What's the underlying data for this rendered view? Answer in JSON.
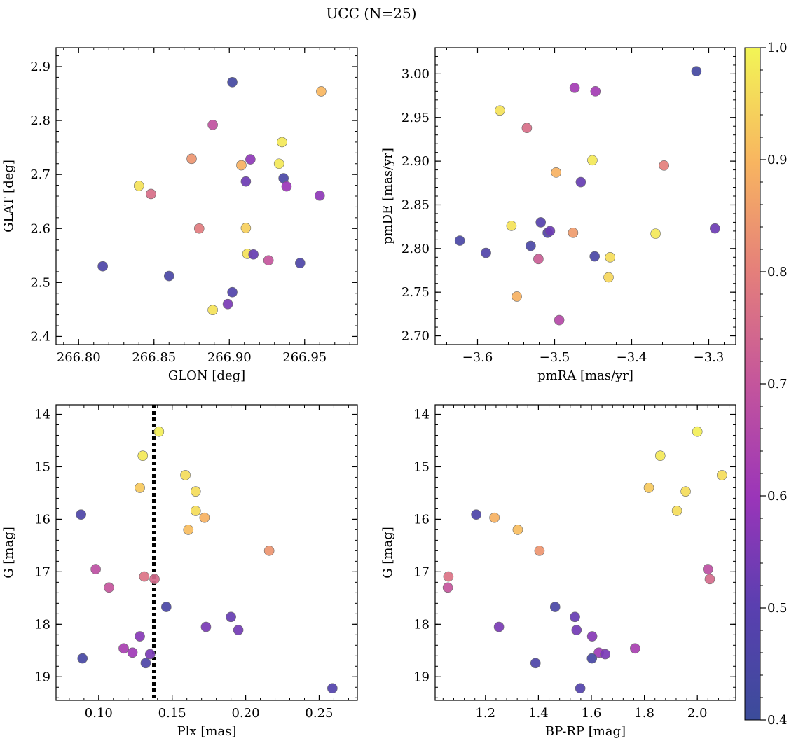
{
  "title": "UCC (N=25)",
  "colorbar": {
    "min": 0.4,
    "max": 1.0,
    "ticks": [
      0.4,
      0.5,
      0.6,
      0.7,
      0.8,
      0.9,
      1.0
    ],
    "tick_labels": [
      "0.4",
      "0.5",
      "0.6",
      "0.7",
      "0.8",
      "0.9",
      "1.0"
    ],
    "colormap": "plasma"
  },
  "chart_data": [
    {
      "type": "scatter",
      "panel": "top-left",
      "xlabel": "GLON [deg]",
      "ylabel": "GLAT [deg]",
      "xlim": [
        266.785,
        266.985
      ],
      "ylim": [
        2.385,
        2.935
      ],
      "xticks": [
        266.8,
        266.85,
        266.9,
        266.95
      ],
      "xtick_labels": [
        "266.80",
        "266.85",
        "266.90",
        "266.95"
      ],
      "yticks": [
        2.4,
        2.5,
        2.6,
        2.7,
        2.8,
        2.9
      ],
      "ytick_labels": [
        "2.4",
        "2.5",
        "2.6",
        "2.7",
        "2.8",
        "2.9"
      ],
      "y_inverted": false,
      "points": [
        {
          "x": 266.902,
          "y": 2.871,
          "c": 0.43
        },
        {
          "x": 266.961,
          "y": 2.854,
          "c": 0.9
        },
        {
          "x": 266.889,
          "y": 2.792,
          "c": 0.69
        },
        {
          "x": 266.935,
          "y": 2.76,
          "c": 0.98
        },
        {
          "x": 266.914,
          "y": 2.728,
          "c": 0.58
        },
        {
          "x": 266.875,
          "y": 2.729,
          "c": 0.84
        },
        {
          "x": 266.908,
          "y": 2.717,
          "c": 0.89
        },
        {
          "x": 266.933,
          "y": 2.72,
          "c": 0.98
        },
        {
          "x": 266.936,
          "y": 2.693,
          "c": 0.45
        },
        {
          "x": 266.911,
          "y": 2.687,
          "c": 0.53
        },
        {
          "x": 266.84,
          "y": 2.679,
          "c": 0.97
        },
        {
          "x": 266.938,
          "y": 2.678,
          "c": 0.6
        },
        {
          "x": 266.848,
          "y": 2.664,
          "c": 0.76
        },
        {
          "x": 266.96,
          "y": 2.661,
          "c": 0.58
        },
        {
          "x": 266.88,
          "y": 2.6,
          "c": 0.79
        },
        {
          "x": 266.911,
          "y": 2.601,
          "c": 0.94
        },
        {
          "x": 266.912,
          "y": 2.553,
          "c": 0.97
        },
        {
          "x": 266.916,
          "y": 2.552,
          "c": 0.52
        },
        {
          "x": 266.926,
          "y": 2.541,
          "c": 0.7
        },
        {
          "x": 266.947,
          "y": 2.536,
          "c": 0.46
        },
        {
          "x": 266.816,
          "y": 2.53,
          "c": 0.46
        },
        {
          "x": 266.86,
          "y": 2.512,
          "c": 0.45
        },
        {
          "x": 266.902,
          "y": 2.482,
          "c": 0.47
        },
        {
          "x": 266.899,
          "y": 2.46,
          "c": 0.55
        },
        {
          "x": 266.889,
          "y": 2.449,
          "c": 0.97
        }
      ]
    },
    {
      "type": "scatter",
      "panel": "top-right",
      "xlabel": "pmRA [mas/yr]",
      "ylabel": "pmDE [mas/yr]",
      "xlim": [
        -3.655,
        -3.265
      ],
      "ylim": [
        2.69,
        3.03
      ],
      "xticks": [
        -3.6,
        -3.5,
        -3.4,
        -3.3
      ],
      "xtick_labels": [
        "−3.6",
        "−3.5",
        "−3.4",
        "−3.3"
      ],
      "yticks": [
        2.7,
        2.75,
        2.8,
        2.85,
        2.9,
        2.95,
        3.0
      ],
      "ytick_labels": [
        "2.70",
        "2.75",
        "2.80",
        "2.85",
        "2.90",
        "2.95",
        "3.00"
      ],
      "y_inverted": false,
      "points": [
        {
          "x": -3.316,
          "y": 3.003,
          "c": 0.43
        },
        {
          "x": -3.474,
          "y": 2.984,
          "c": 0.62
        },
        {
          "x": -3.447,
          "y": 2.98,
          "c": 0.62
        },
        {
          "x": -3.571,
          "y": 2.958,
          "c": 0.97
        },
        {
          "x": -3.536,
          "y": 2.938,
          "c": 0.76
        },
        {
          "x": -3.451,
          "y": 2.901,
          "c": 0.98
        },
        {
          "x": -3.358,
          "y": 2.895,
          "c": 0.8
        },
        {
          "x": -3.498,
          "y": 2.887,
          "c": 0.89
        },
        {
          "x": -3.466,
          "y": 2.876,
          "c": 0.52
        },
        {
          "x": -3.556,
          "y": 2.826,
          "c": 0.97
        },
        {
          "x": -3.518,
          "y": 2.83,
          "c": 0.49
        },
        {
          "x": -3.509,
          "y": 2.818,
          "c": 0.47
        },
        {
          "x": -3.506,
          "y": 2.82,
          "c": 0.53
        },
        {
          "x": -3.476,
          "y": 2.818,
          "c": 0.85
        },
        {
          "x": -3.369,
          "y": 2.817,
          "c": 0.98
        },
        {
          "x": -3.292,
          "y": 2.823,
          "c": 0.53
        },
        {
          "x": -3.623,
          "y": 2.809,
          "c": 0.45
        },
        {
          "x": -3.531,
          "y": 2.803,
          "c": 0.45
        },
        {
          "x": -3.589,
          "y": 2.795,
          "c": 0.47
        },
        {
          "x": -3.448,
          "y": 2.791,
          "c": 0.45
        },
        {
          "x": -3.428,
          "y": 2.79,
          "c": 0.96
        },
        {
          "x": -3.521,
          "y": 2.788,
          "c": 0.72
        },
        {
          "x": -3.43,
          "y": 2.767,
          "c": 0.95
        },
        {
          "x": -3.549,
          "y": 2.745,
          "c": 0.89
        },
        {
          "x": -3.494,
          "y": 2.718,
          "c": 0.66
        }
      ]
    },
    {
      "type": "scatter",
      "panel": "bottom-left",
      "xlabel": "Plx [mas]",
      "ylabel": "G [mag]",
      "xlim": [
        0.071,
        0.276
      ],
      "ylim": [
        19.45,
        13.82
      ],
      "xticks": [
        0.1,
        0.15,
        0.2,
        0.25
      ],
      "xtick_labels": [
        "0.10",
        "0.15",
        "0.20",
        "0.25"
      ],
      "yticks": [
        14,
        15,
        16,
        17,
        18,
        19
      ],
      "ytick_labels": [
        "14",
        "15",
        "16",
        "17",
        "18",
        "19"
      ],
      "y_inverted": true,
      "vline": {
        "x": 0.1375,
        "style": "dotted",
        "color": "#000000"
      },
      "points": [
        {
          "x": 0.141,
          "y": 14.33,
          "c": 0.99
        },
        {
          "x": 0.13,
          "y": 14.79,
          "c": 0.98
        },
        {
          "x": 0.159,
          "y": 15.16,
          "c": 0.96
        },
        {
          "x": 0.128,
          "y": 15.4,
          "c": 0.93
        },
        {
          "x": 0.166,
          "y": 15.47,
          "c": 0.96
        },
        {
          "x": 0.166,
          "y": 15.84,
          "c": 0.96
        },
        {
          "x": 0.088,
          "y": 15.91,
          "c": 0.46
        },
        {
          "x": 0.172,
          "y": 15.97,
          "c": 0.89
        },
        {
          "x": 0.161,
          "y": 16.2,
          "c": 0.91
        },
        {
          "x": 0.216,
          "y": 16.6,
          "c": 0.84
        },
        {
          "x": 0.098,
          "y": 16.95,
          "c": 0.68
        },
        {
          "x": 0.131,
          "y": 17.09,
          "c": 0.77
        },
        {
          "x": 0.138,
          "y": 17.14,
          "c": 0.75
        },
        {
          "x": 0.107,
          "y": 17.3,
          "c": 0.7
        },
        {
          "x": 0.146,
          "y": 17.67,
          "c": 0.45
        },
        {
          "x": 0.19,
          "y": 17.86,
          "c": 0.52
        },
        {
          "x": 0.173,
          "y": 18.05,
          "c": 0.55
        },
        {
          "x": 0.195,
          "y": 18.11,
          "c": 0.54
        },
        {
          "x": 0.128,
          "y": 18.23,
          "c": 0.57
        },
        {
          "x": 0.117,
          "y": 18.46,
          "c": 0.63
        },
        {
          "x": 0.123,
          "y": 18.54,
          "c": 0.61
        },
        {
          "x": 0.135,
          "y": 18.57,
          "c": 0.55
        },
        {
          "x": 0.089,
          "y": 18.65,
          "c": 0.44
        },
        {
          "x": 0.132,
          "y": 18.74,
          "c": 0.46
        },
        {
          "x": 0.259,
          "y": 19.22,
          "c": 0.48
        }
      ]
    },
    {
      "type": "scatter",
      "panel": "bottom-right",
      "xlabel": "BP-RP [mag]",
      "ylabel": "G [mag]",
      "xlim": [
        1.01,
        2.145
      ],
      "ylim": [
        19.45,
        13.82
      ],
      "xticks": [
        1.2,
        1.4,
        1.6,
        1.8,
        2.0
      ],
      "xtick_labels": [
        "1.2",
        "1.4",
        "1.6",
        "1.8",
        "2.0"
      ],
      "yticks": [
        14,
        15,
        16,
        17,
        18,
        19
      ],
      "ytick_labels": [
        "14",
        "15",
        "16",
        "17",
        "18",
        "19"
      ],
      "y_inverted": true,
      "points": [
        {
          "x": 2.0,
          "y": 14.33,
          "c": 0.99
        },
        {
          "x": 1.86,
          "y": 14.79,
          "c": 0.98
        },
        {
          "x": 2.093,
          "y": 15.16,
          "c": 0.96
        },
        {
          "x": 1.817,
          "y": 15.4,
          "c": 0.93
        },
        {
          "x": 1.956,
          "y": 15.47,
          "c": 0.96
        },
        {
          "x": 1.923,
          "y": 15.84,
          "c": 0.96
        },
        {
          "x": 1.165,
          "y": 15.91,
          "c": 0.46
        },
        {
          "x": 1.234,
          "y": 15.97,
          "c": 0.89
        },
        {
          "x": 1.322,
          "y": 16.2,
          "c": 0.91
        },
        {
          "x": 1.404,
          "y": 16.6,
          "c": 0.84
        },
        {
          "x": 2.04,
          "y": 16.95,
          "c": 0.68
        },
        {
          "x": 1.06,
          "y": 17.09,
          "c": 0.77
        },
        {
          "x": 2.047,
          "y": 17.14,
          "c": 0.75
        },
        {
          "x": 1.058,
          "y": 17.3,
          "c": 0.7
        },
        {
          "x": 1.463,
          "y": 17.67,
          "c": 0.45
        },
        {
          "x": 1.538,
          "y": 17.86,
          "c": 0.52
        },
        {
          "x": 1.251,
          "y": 18.05,
          "c": 0.55
        },
        {
          "x": 1.544,
          "y": 18.11,
          "c": 0.54
        },
        {
          "x": 1.603,
          "y": 18.23,
          "c": 0.57
        },
        {
          "x": 1.765,
          "y": 18.46,
          "c": 0.63
        },
        {
          "x": 1.628,
          "y": 18.54,
          "c": 0.61
        },
        {
          "x": 1.652,
          "y": 18.57,
          "c": 0.55
        },
        {
          "x": 1.602,
          "y": 18.65,
          "c": 0.44
        },
        {
          "x": 1.389,
          "y": 18.74,
          "c": 0.46
        },
        {
          "x": 1.558,
          "y": 19.22,
          "c": 0.48
        }
      ]
    }
  ]
}
